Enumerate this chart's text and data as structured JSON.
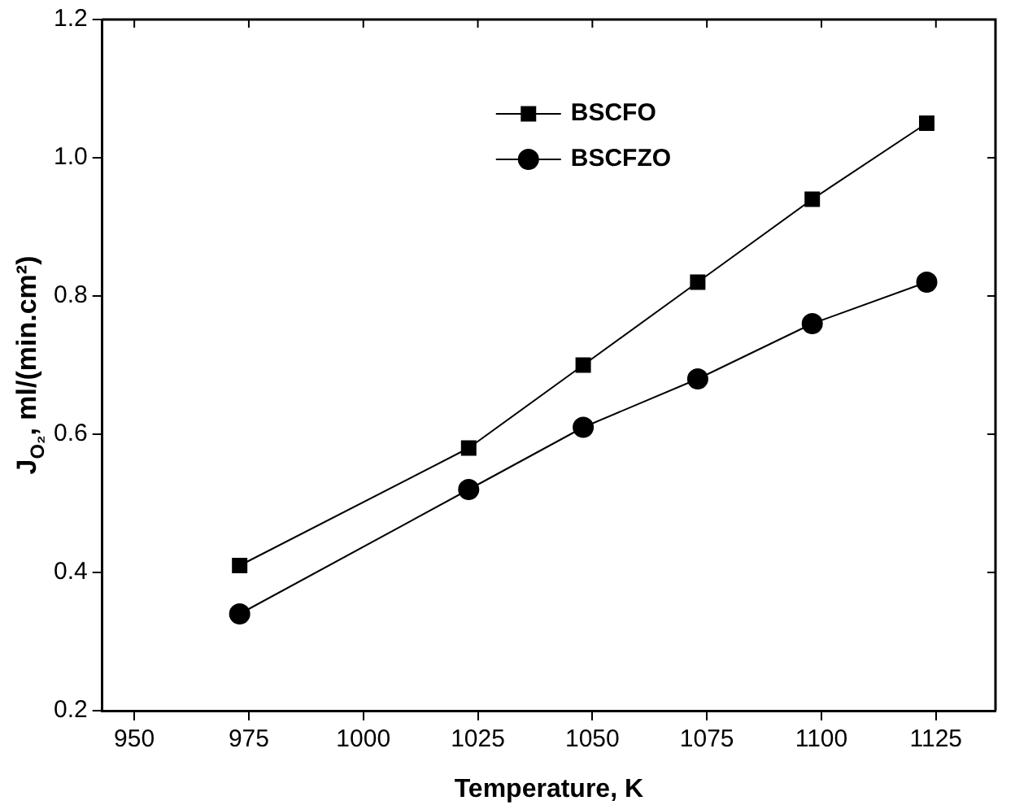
{
  "chart_data": {
    "type": "line",
    "xlabel": "Temperature, K",
    "ylabel": "J$_{O₂}$, ml/(min.cm²)",
    "x": [
      973,
      1023,
      1048,
      1073,
      1098,
      1123
    ],
    "series": [
      {
        "name": "BSCFO",
        "color": "#000000",
        "marker": "square",
        "values": [
          0.41,
          0.58,
          0.7,
          0.82,
          0.94,
          1.05
        ]
      },
      {
        "name": "BSCFZO",
        "color": "#000000",
        "marker": "circle",
        "values": [
          0.34,
          0.52,
          0.61,
          0.68,
          0.76,
          0.82
        ]
      }
    ],
    "xlim": [
      943,
      1138
    ],
    "xticks": [
      950,
      975,
      1000,
      1025,
      1050,
      1075,
      1100,
      1125
    ],
    "ylim": [
      0.2,
      1.2
    ],
    "yticks": [
      {
        "value": 0.2,
        "label": "0.2"
      },
      {
        "value": 0.4,
        "label": "0.4"
      },
      {
        "value": 0.6,
        "label": "0.6"
      },
      {
        "value": 0.8,
        "label": "0.8"
      },
      {
        "value": 1.0,
        "label": "1.0"
      },
      {
        "value": 1.2,
        "label": "1.2"
      }
    ],
    "grid": false,
    "legend": "top",
    "line_style": "solid"
  }
}
